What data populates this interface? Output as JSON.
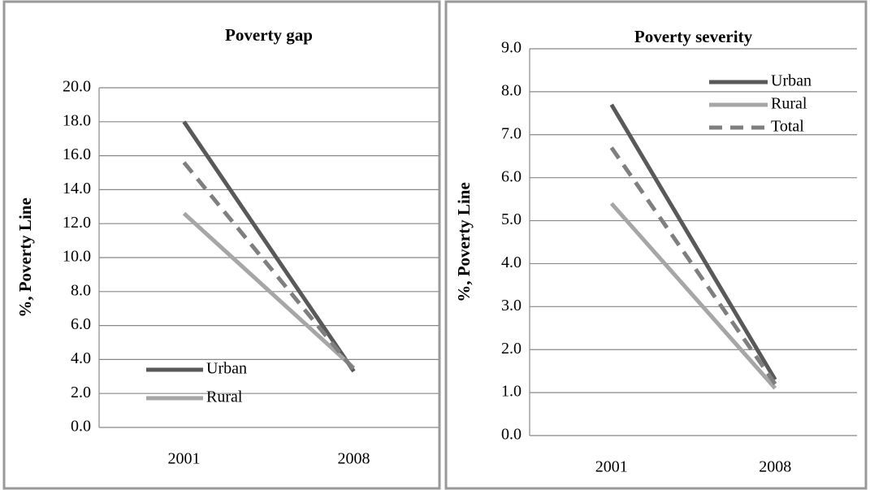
{
  "chart_data": [
    {
      "type": "line",
      "title": "Poverty gap",
      "y_label": "%, Poverty Line",
      "categories": [
        "2001",
        "2008"
      ],
      "series": [
        {
          "name": "Urban",
          "color": "#595959",
          "values": [
            18.0,
            3.3
          ]
        },
        {
          "name": "Rural",
          "color": "#a6a6a6",
          "values": [
            12.6,
            3.5
          ]
        },
        {
          "color": "#7f7f7f",
          "style": "dashed",
          "values": [
            15.6,
            3.4
          ]
        }
      ],
      "ylim": [
        0,
        20
      ],
      "yticks": [
        {
          "value": 0,
          "label": "0.0"
        },
        {
          "value": 2,
          "label": "2.0"
        },
        {
          "value": 4,
          "label": "4.0"
        },
        {
          "value": 6,
          "label": "6.0"
        },
        {
          "value": 8,
          "label": "8.0"
        },
        {
          "value": 10,
          "label": "10.0"
        },
        {
          "value": 12,
          "label": "12.0"
        },
        {
          "value": 14,
          "label": "14.0"
        },
        {
          "value": 16,
          "label": "16.0"
        },
        {
          "value": 18,
          "label": "18.0"
        },
        {
          "value": 20,
          "label": "20.0"
        }
      ],
      "grid": true,
      "legend": "bottom-left"
    },
    {
      "type": "line",
      "title": "Poverty severity",
      "y_label": "%, Poverty Line",
      "categories": [
        "2001",
        "2008"
      ],
      "series": [
        {
          "name": "Urban",
          "color": "#595959",
          "values": [
            7.7,
            1.3
          ]
        },
        {
          "name": "Rural",
          "color": "#a6a6a6",
          "values": [
            5.4,
            1.1
          ]
        },
        {
          "name": "Total",
          "color": "#7f7f7f",
          "style": "dashed",
          "values": [
            6.7,
            1.2
          ]
        }
      ],
      "ylim": [
        0,
        9
      ],
      "yticks": [
        {
          "value": 0,
          "label": "0.0"
        },
        {
          "value": 1,
          "label": "1.0"
        },
        {
          "value": 2,
          "label": "2.0"
        },
        {
          "value": 3,
          "label": "3.0"
        },
        {
          "value": 4,
          "label": "4.0"
        },
        {
          "value": 5,
          "label": "5.0"
        },
        {
          "value": 6,
          "label": "6.0"
        },
        {
          "value": 7,
          "label": "7.0"
        },
        {
          "value": 8,
          "label": "8.0"
        },
        {
          "value": 9,
          "label": "9.0"
        }
      ],
      "grid": true,
      "legend": "top-right"
    }
  ]
}
